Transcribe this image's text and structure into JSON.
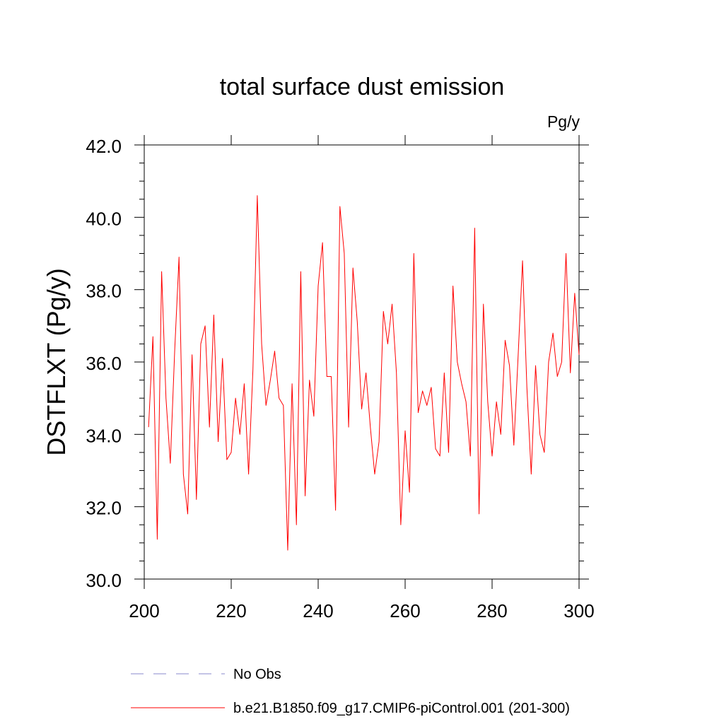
{
  "chart_data": {
    "type": "line",
    "title": "total surface dust emission",
    "units": "Pg/y",
    "ylabel": "DSTFLXT  (Pg/y)",
    "xlabel": "",
    "xlim": [
      200,
      300
    ],
    "ylim": [
      30.0,
      42.0
    ],
    "x_ticks": [
      200,
      220,
      240,
      260,
      280,
      300
    ],
    "x_tick_labels": [
      "200",
      "220",
      "240",
      "260",
      "280",
      "300"
    ],
    "y_ticks": [
      30,
      32,
      34,
      36,
      38,
      40,
      42
    ],
    "y_tick_labels": [
      "30.0",
      "32.0",
      "34.0",
      "36.0",
      "38.0",
      "40.0",
      "42.0"
    ],
    "grid": false,
    "legend_position": "bottom",
    "series": [
      {
        "name": "No Obs",
        "color": "#8888cc",
        "style": "dashed",
        "x": [],
        "values": []
      },
      {
        "name": "b.e21.B1850.f09_g17.CMIP6-piControl.001 (201-300)",
        "color": "#ff0000",
        "style": "solid",
        "x": [
          201,
          202,
          203,
          204,
          205,
          206,
          207,
          208,
          209,
          210,
          211,
          212,
          213,
          214,
          215,
          216,
          217,
          218,
          219,
          220,
          221,
          222,
          223,
          224,
          225,
          226,
          227,
          228,
          229,
          230,
          231,
          232,
          233,
          234,
          235,
          236,
          237,
          238,
          239,
          240,
          241,
          242,
          243,
          244,
          245,
          246,
          247,
          248,
          249,
          250,
          251,
          252,
          253,
          254,
          255,
          256,
          257,
          258,
          259,
          260,
          261,
          262,
          263,
          264,
          265,
          266,
          267,
          268,
          269,
          270,
          271,
          272,
          273,
          274,
          275,
          276,
          277,
          278,
          279,
          280,
          281,
          282,
          283,
          284,
          285,
          286,
          287,
          288,
          289,
          290,
          291,
          292,
          293,
          294,
          295,
          296,
          297,
          298,
          299,
          300
        ],
        "values": [
          34.2,
          36.7,
          31.1,
          38.5,
          35.0,
          33.2,
          36.3,
          38.9,
          32.9,
          31.8,
          36.2,
          32.2,
          36.5,
          37.0,
          34.2,
          37.3,
          33.8,
          36.1,
          33.3,
          33.5,
          35.0,
          34.0,
          35.4,
          32.9,
          35.8,
          40.6,
          36.5,
          34.8,
          35.5,
          36.3,
          35.0,
          34.8,
          30.8,
          35.4,
          31.5,
          38.5,
          32.3,
          35.5,
          34.5,
          38.1,
          39.3,
          35.6,
          35.6,
          31.9,
          40.3,
          39.0,
          34.2,
          38.6,
          37.1,
          34.7,
          35.7,
          34.2,
          32.9,
          33.8,
          37.4,
          36.5,
          37.6,
          35.7,
          31.5,
          34.1,
          32.4,
          39.0,
          34.6,
          35.2,
          34.8,
          35.3,
          33.6,
          33.4,
          35.7,
          33.5,
          38.1,
          36.0,
          35.4,
          34.9,
          33.4,
          39.7,
          31.8,
          37.6,
          34.9,
          33.4,
          34.9,
          34.0,
          36.6,
          35.9,
          33.7,
          36.2,
          38.8,
          35.3,
          32.9,
          35.9,
          34.0,
          33.5,
          36.0,
          36.8,
          35.6,
          36.0,
          39.0,
          35.7,
          37.9,
          36.2
        ]
      }
    ]
  }
}
